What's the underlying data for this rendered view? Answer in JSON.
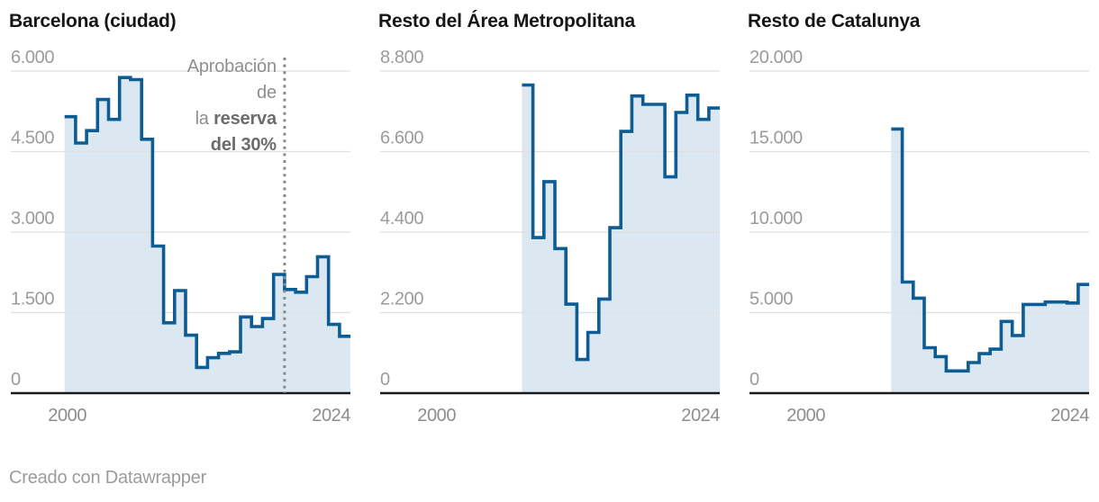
{
  "theme": {
    "line_color": "#0d5c94",
    "area_color": "#dbe7f1",
    "grid_color": "#e0e0e0",
    "axis_color": "#1a1a1a",
    "y_tick_label_color": "#9b9b9b",
    "x_tick_label_color": "#8d8d8d",
    "annotation_color": "#8f8f8f",
    "annotation_bold_color": "#6b6b6b",
    "dotted_line_color": "#8a8a8a"
  },
  "footer": {
    "credit": "Creado con Datawrapper"
  },
  "chart_data": [
    {
      "type": "area",
      "step": true,
      "title": "Barcelona (ciudad)",
      "x_axis": {
        "domain": [
          2000,
          2026
        ],
        "ticks": [
          {
            "year": 2000,
            "label": "2000"
          },
          {
            "year": 2024,
            "label": "2024"
          }
        ]
      },
      "y_axis": {
        "max": 6000,
        "ticks": [
          {
            "value": 0,
            "label": "0"
          },
          {
            "value": 1500,
            "label": "1.500"
          },
          {
            "value": 3000,
            "label": "3.000"
          },
          {
            "value": 4500,
            "label": "4.500"
          },
          {
            "value": 6000,
            "label": "6.000"
          }
        ]
      },
      "series": {
        "start_year": 2000,
        "end_year": 2025,
        "years": [
          2000,
          2001,
          2002,
          2003,
          2004,
          2005,
          2006,
          2007,
          2008,
          2009,
          2010,
          2011,
          2012,
          2013,
          2014,
          2015,
          2016,
          2017,
          2018,
          2019,
          2020,
          2021,
          2022,
          2023,
          2024,
          2025
        ],
        "values": [
          5150,
          4660,
          4890,
          5470,
          5100,
          5880,
          5840,
          4730,
          2740,
          1310,
          1910,
          1080,
          480,
          660,
          740,
          770,
          1420,
          1240,
          1390,
          2210,
          1930,
          1880,
          2170,
          2540,
          1280,
          1060
        ]
      },
      "annotation": {
        "text": "Aprobación de la reserva del 30%",
        "lines": [
          {
            "normal": "Aprobación",
            "bold": ""
          },
          {
            "normal": "de",
            "bold": ""
          },
          {
            "normal": "la ",
            "bold": "reserva"
          },
          {
            "normal": "",
            "bold": "del 30%"
          }
        ],
        "line_year": 2020
      }
    },
    {
      "type": "area",
      "step": true,
      "title": "Resto del Área Metropolitana",
      "x_axis": {
        "domain": [
          2000,
          2026
        ],
        "ticks": [
          {
            "year": 2000,
            "label": "2000"
          },
          {
            "year": 2024,
            "label": "2024"
          }
        ]
      },
      "y_axis": {
        "max": 8800,
        "ticks": [
          {
            "value": 0,
            "label": "0"
          },
          {
            "value": 2200,
            "label": "2.200"
          },
          {
            "value": 4400,
            "label": "4.400"
          },
          {
            "value": 6600,
            "label": "6.600"
          },
          {
            "value": 8800,
            "label": "8.800"
          }
        ]
      },
      "series": {
        "start_year": 2008,
        "end_year": 2025,
        "years": [
          2008,
          2009,
          2010,
          2011,
          2012,
          2013,
          2014,
          2015,
          2016,
          2017,
          2018,
          2019,
          2020,
          2021,
          2022,
          2023,
          2024,
          2025
        ],
        "values": [
          8420,
          4250,
          5780,
          3950,
          2430,
          920,
          1660,
          2570,
          4520,
          7150,
          8120,
          7890,
          7890,
          5910,
          7670,
          8140,
          7480,
          7790
        ]
      },
      "annotation": null
    },
    {
      "type": "area",
      "step": true,
      "title": "Resto de Catalunya",
      "x_axis": {
        "domain": [
          2000,
          2026
        ],
        "ticks": [
          {
            "year": 2000,
            "label": "2000"
          },
          {
            "year": 2024,
            "label": "2024"
          }
        ]
      },
      "y_axis": {
        "max": 20000,
        "ticks": [
          {
            "value": 0,
            "label": "0"
          },
          {
            "value": 5000,
            "label": "5.000"
          },
          {
            "value": 10000,
            "label": "10.000"
          },
          {
            "value": 15000,
            "label": "15.000"
          },
          {
            "value": 20000,
            "label": "20.000"
          }
        ]
      },
      "series": {
        "start_year": 2008,
        "end_year": 2025,
        "years": [
          2008,
          2009,
          2010,
          2011,
          2012,
          2013,
          2014,
          2015,
          2016,
          2017,
          2018,
          2019,
          2020,
          2021,
          2022,
          2023,
          2024,
          2025
        ],
        "values": [
          16400,
          6900,
          5900,
          2820,
          2270,
          1380,
          1380,
          1900,
          2450,
          2730,
          4450,
          3580,
          5510,
          5510,
          5660,
          5660,
          5600,
          6750
        ]
      },
      "annotation": null
    }
  ]
}
